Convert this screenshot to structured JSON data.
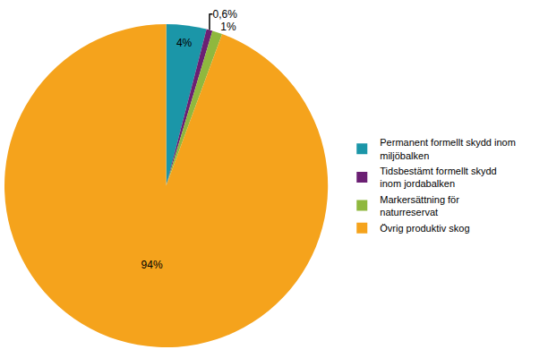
{
  "chart_data": {
    "type": "pie",
    "categories": [
      "Permanent formellt skydd inom miljöbalken",
      "Tidsbestämt formellt skydd inom jordabalken",
      "Markersättning för naturreservat",
      "Övrig produktiv skog"
    ],
    "values": [
      4,
      0.6,
      1,
      94
    ],
    "value_labels": [
      "4%",
      "0,6%",
      "1%",
      "94%"
    ],
    "colors": [
      "#1b96a8",
      "#6b1f73",
      "#8fb83e",
      "#f5a31c"
    ],
    "data_labels": true,
    "legend": "right"
  }
}
